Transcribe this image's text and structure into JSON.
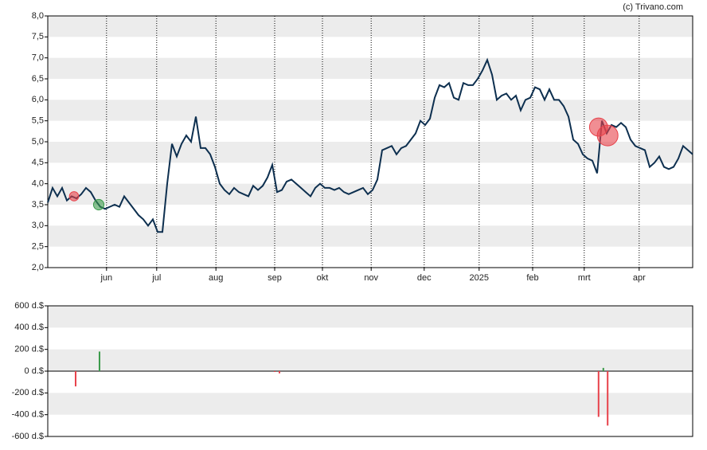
{
  "credit": "(c) Trivano.com",
  "chart_data": [
    {
      "type": "line",
      "xlim": [
        0,
        135
      ],
      "xticks": [
        {
          "value": 12.3,
          "label": "jun"
        },
        {
          "value": 22.8,
          "label": "jul"
        },
        {
          "value": 35.2,
          "label": "aug"
        },
        {
          "value": 47.5,
          "label": "sep"
        },
        {
          "value": 57.5,
          "label": "okt"
        },
        {
          "value": 67.7,
          "label": "nov"
        },
        {
          "value": 78.8,
          "label": "dec"
        },
        {
          "value": 90.3,
          "label": "2025"
        },
        {
          "value": 101.5,
          "label": "feb"
        },
        {
          "value": 112.3,
          "label": "mrt"
        },
        {
          "value": 123.8,
          "label": "apr"
        }
      ],
      "ylim": [
        2,
        8
      ],
      "yticks": [
        {
          "value": 2,
          "label": "2,0"
        },
        {
          "value": 2.5,
          "label": "2,5"
        },
        {
          "value": 3,
          "label": "3,0"
        },
        {
          "value": 3.5,
          "label": "3,5"
        },
        {
          "value": 4,
          "label": "4,0"
        },
        {
          "value": 4.5,
          "label": "4,5"
        },
        {
          "value": 5,
          "label": "5,0"
        },
        {
          "value": 5.5,
          "label": "5,5"
        },
        {
          "value": 6,
          "label": "6,0"
        },
        {
          "value": 6.5,
          "label": "6,5"
        },
        {
          "value": 7,
          "label": "7,0"
        },
        {
          "value": 7.5,
          "label": "7,5"
        },
        {
          "value": 8,
          "label": "8,0"
        }
      ],
      "color": "#0d2f4f",
      "values": [
        3.55,
        3.9,
        3.7,
        3.9,
        3.6,
        3.7,
        3.65,
        3.75,
        3.9,
        3.8,
        3.6,
        3.45,
        3.4,
        3.45,
        3.5,
        3.45,
        3.7,
        3.55,
        3.4,
        3.25,
        3.15,
        3.0,
        3.15,
        2.85,
        2.85,
        4.0,
        4.95,
        4.65,
        4.95,
        5.15,
        5.0,
        5.6,
        4.85,
        4.85,
        4.7,
        4.4,
        4.0,
        3.85,
        3.75,
        3.9,
        3.8,
        3.75,
        3.7,
        3.95,
        3.85,
        3.95,
        4.15,
        4.45,
        3.8,
        3.85,
        4.05,
        4.1,
        4.0,
        3.9,
        3.8,
        3.7,
        3.9,
        4.0,
        3.9,
        3.9,
        3.85,
        3.9,
        3.8,
        3.75,
        3.8,
        3.85,
        3.9,
        3.75,
        3.85,
        4.1,
        4.8,
        4.85,
        4.9,
        4.7,
        4.85,
        4.9,
        5.05,
        5.2,
        5.5,
        5.4,
        5.55,
        6.05,
        6.35,
        6.3,
        6.4,
        6.05,
        6.0,
        6.4,
        6.35,
        6.35,
        6.5,
        6.7,
        6.95,
        6.6,
        6.0,
        6.1,
        6.15,
        6.0,
        6.1,
        5.75,
        6.0,
        6.05,
        6.3,
        6.25,
        6.0,
        6.25,
        6.0,
        6.0,
        5.85,
        5.6,
        5.05,
        4.95,
        4.7,
        4.6,
        4.55,
        4.25,
        5.5,
        5.2,
        5.4,
        5.35,
        5.45,
        5.35,
        5.05,
        4.9,
        4.85,
        4.8,
        4.4,
        4.5,
        4.65,
        4.4,
        4.35,
        4.4,
        4.6,
        4.9,
        4.8,
        4.7
      ],
      "markers": [
        {
          "x": 5.5,
          "value": 3.7,
          "color": "#e8424b"
        },
        {
          "x": 10.67,
          "value": 3.5,
          "color": "#3a9a4a"
        },
        {
          "x": 115.3,
          "value": 5.35,
          "color": "#e8424b"
        },
        {
          "x": 117.2,
          "value": 5.15,
          "color": "#e8424b"
        }
      ]
    },
    {
      "type": "bar",
      "xlim": [
        0,
        135
      ],
      "ylim": [
        -600,
        600
      ],
      "yticks": [
        {
          "value": -600,
          "label": "-600 d.$"
        },
        {
          "value": -400,
          "label": "-400 d.$"
        },
        {
          "value": -200,
          "label": "-200 d.$"
        },
        {
          "value": 0,
          "label": "0 d.$"
        },
        {
          "value": 200,
          "label": "200 d.$"
        },
        {
          "value": 400,
          "label": "400 d.$"
        },
        {
          "value": 600,
          "label": "600 d.$"
        }
      ],
      "up_color": "#3a9a4a",
      "down_color": "#e8424b",
      "x": [
        5.83,
        10.83,
        47.5,
        48.5,
        115.3,
        116.3,
        117.2
      ],
      "values": [
        -140,
        180,
        -5,
        -20,
        -420,
        30,
        -500
      ]
    }
  ]
}
